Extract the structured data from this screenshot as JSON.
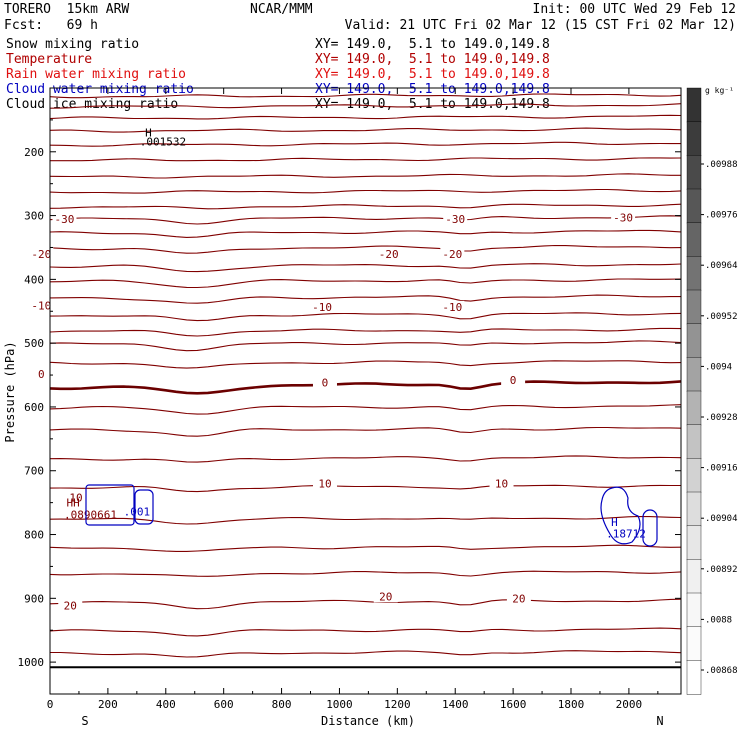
{
  "header": {
    "model": "TORERO  15km ARW",
    "org": "NCAR/MMM",
    "init": "Init: 00 UTC Wed 29 Feb 12",
    "fcst": "Fcst:   69 h",
    "valid": "Valid: 21 UTC Fri 02 Mar 12 (15 CST Fri 02 Mar 12)"
  },
  "fields": [
    {
      "name": "Snow mixing ratio",
      "xy": "XY= 149.0,  5.1 to 149.0,149.8",
      "color": "#000000"
    },
    {
      "name": "Temperature",
      "xy": "XY= 149.0,  5.1 to 149.0,149.8",
      "color": "#b00000"
    },
    {
      "name": "Rain water mixing ratio",
      "xy": "XY= 149.0,  5.1 to 149.0,149.8",
      "color": "#e01010"
    },
    {
      "name": "Cloud water mixing ratio",
      "xy": "XY= 149.0,  5.1 to 149.0,149.8",
      "color": "#0000c0"
    },
    {
      "name": "Cloud ice mixing ratio",
      "xy": "XY= 149.0,  5.1 to 149.0,149.8",
      "color": "#000000"
    }
  ],
  "chart_data": {
    "type": "contour",
    "xlabel": "Distance (km)",
    "ylabel": "Pressure (hPa)",
    "xlim": [
      0,
      2180
    ],
    "ylim": [
      1050,
      100
    ],
    "x_ticks": [
      0,
      200,
      400,
      600,
      800,
      1000,
      1200,
      1400,
      1600,
      1800,
      2000
    ],
    "y_ticks": [
      200,
      300,
      400,
      500,
      600,
      700,
      800,
      900,
      1000
    ],
    "y_tick_labels": [
      "200",
      "300",
      "400",
      "500",
      "600",
      "700",
      "800",
      "900",
      "1000"
    ],
    "end_labels": {
      "left": "S",
      "right": "N"
    },
    "temperature_color": "#800000",
    "zero_isotherm_color": "#6b0000",
    "temperature_contours": [
      {
        "pressure": 112,
        "dip": 0
      },
      {
        "pressure": 128,
        "dip": 0
      },
      {
        "pressure": 146,
        "dip": 0
      },
      {
        "pressure": 166,
        "dip": 0
      },
      {
        "pressure": 188,
        "dip": 0
      },
      {
        "pressure": 212,
        "dip": 0
      },
      {
        "pressure": 238,
        "dip": 0
      },
      {
        "pressure": 262,
        "dip": 0
      },
      {
        "pressure": 285,
        "dip": 2
      },
      {
        "pressure": 304,
        "dip": 4
      },
      {
        "pressure": 326,
        "dip": 4
      },
      {
        "pressure": 350,
        "dip": 6
      },
      {
        "pressure": 378,
        "dip": 6
      },
      {
        "pressure": 402,
        "dip": 6
      },
      {
        "pressure": 428,
        "dip": 6
      },
      {
        "pressure": 455,
        "dip": 6
      },
      {
        "pressure": 480,
        "dip": 4
      },
      {
        "pressure": 500,
        "dip": 6
      },
      {
        "pressure": 530,
        "dip": 6
      },
      {
        "pressure": 565,
        "dip": 8,
        "bold": true
      },
      {
        "pressure": 600,
        "dip": 6
      },
      {
        "pressure": 635,
        "dip": 6
      },
      {
        "pressure": 680,
        "dip": 4
      },
      {
        "pressure": 725,
        "dip": 4
      },
      {
        "pressure": 775,
        "dip": 4
      },
      {
        "pressure": 820,
        "dip": 4
      },
      {
        "pressure": 860,
        "dip": 4
      },
      {
        "pressure": 905,
        "dip": 6
      },
      {
        "pressure": 950,
        "dip": 4
      },
      {
        "pressure": 985,
        "dip": 4
      }
    ],
    "ground_pressure": 1008,
    "temperature_labels": [
      {
        "text": "-30",
        "x": 50,
        "p": 305
      },
      {
        "text": "-30",
        "x": 1400,
        "p": 305
      },
      {
        "text": "-30",
        "x": 1980,
        "p": 303
      },
      {
        "text": "-20",
        "x": -30,
        "p": 360
      },
      {
        "text": "-20",
        "x": 1170,
        "p": 360
      },
      {
        "text": "-20",
        "x": 1390,
        "p": 360
      },
      {
        "text": "-10",
        "x": -30,
        "p": 441
      },
      {
        "text": "-10",
        "x": 940,
        "p": 443
      },
      {
        "text": "-10",
        "x": 1390,
        "p": 443
      },
      {
        "text": "0",
        "x": -30,
        "p": 548
      },
      {
        "text": "0",
        "x": 950,
        "p": 562
      },
      {
        "text": "0",
        "x": 1600,
        "p": 558
      },
      {
        "text": "10",
        "x": 90,
        "p": 742
      },
      {
        "text": "10",
        "x": 950,
        "p": 720
      },
      {
        "text": "10",
        "x": 1560,
        "p": 720
      },
      {
        "text": "20",
        "x": 70,
        "p": 911
      },
      {
        "text": "20",
        "x": 1160,
        "p": 897
      },
      {
        "text": "20",
        "x": 1620,
        "p": 900
      }
    ],
    "annotations": [
      {
        "text": "H",
        "x": 340,
        "p": 176,
        "color": "#000000"
      },
      {
        "text": ".001532",
        "x": 390,
        "p": 190,
        "color": "#000000"
      },
      {
        "text": "HH",
        "x": 80,
        "p": 756,
        "color": "#800000"
      },
      {
        "text": ".0890661",
        "x": 140,
        "p": 775,
        "color": "#800000"
      },
      {
        "text": ".001",
        "x": 300,
        "p": 770,
        "color": "#0000c0"
      },
      {
        "text": "H",
        "x": 1950,
        "p": 787,
        "color": "#0000c0"
      },
      {
        "text": ".18712",
        "x": 1990,
        "p": 805,
        "color": "#0000c0"
      }
    ],
    "colorbar": {
      "unit": "g kg⁻¹",
      "labels": [
        ".00988",
        ".00976",
        ".00964",
        ".00952",
        ".0094",
        ".00928",
        ".00916",
        ".00904",
        ".00892",
        ".0088",
        ".00868"
      ],
      "colors": [
        "#333333",
        "#3c3c3c",
        "#4a4a4a",
        "#575757",
        "#656565",
        "#737373",
        "#838383",
        "#939393",
        "#a3a3a3",
        "#b3b3b3",
        "#c3c3c3",
        "#d2d2d2",
        "#dddddd",
        "#e7e7e7",
        "#f0f0f0",
        "#f7f7f7",
        "#fbfbfb",
        "#ffffff"
      ]
    }
  }
}
